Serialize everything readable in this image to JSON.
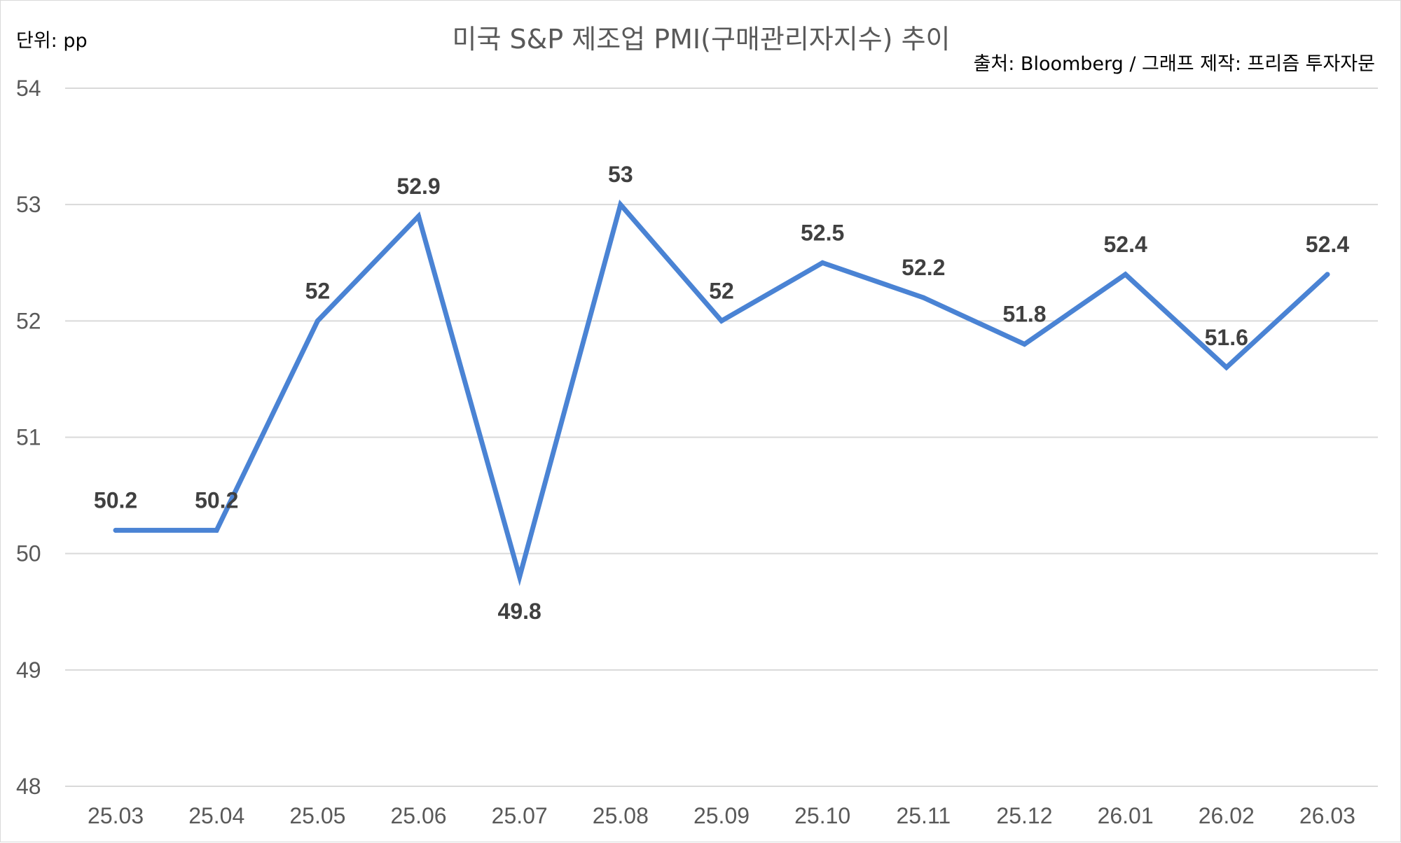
{
  "chart_data": {
    "type": "line",
    "title": "미국 S&P 제조업 PMI(구매관리자지수) 추이",
    "unit_label": "단위: pp",
    "source_label": "출처: Bloomberg / 그래프 제작: 프리즘 투자자문",
    "categories": [
      "25.03",
      "25.04",
      "25.05",
      "25.06",
      "25.07",
      "25.08",
      "25.09",
      "25.10",
      "25.11",
      "25.12",
      "26.01",
      "26.02",
      "26.03"
    ],
    "series": [
      {
        "values": [
          50.2,
          50.2,
          52,
          52.9,
          49.8,
          53,
          52,
          52.5,
          52.2,
          51.8,
          52.4,
          51.6,
          52.4
        ],
        "data_labels": [
          "50.2",
          "50.2",
          "52",
          "52.9",
          "49.8",
          "53",
          "52",
          "52.5",
          "52.2",
          "51.8",
          "52.4",
          "51.6",
          "52.4"
        ],
        "color": "#4a83d4"
      }
    ],
    "yticks": [
      "48",
      "49",
      "50",
      "51",
      "52",
      "53",
      "54"
    ],
    "ylim": [
      48,
      54
    ],
    "grid": true,
    "legend": "none"
  }
}
